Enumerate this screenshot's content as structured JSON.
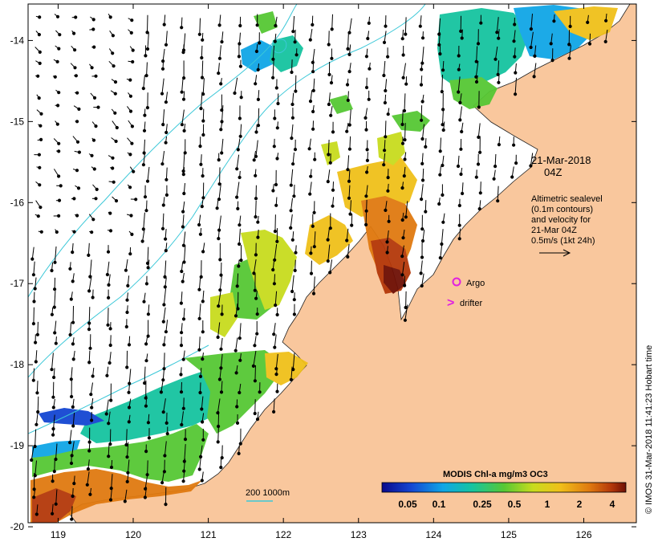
{
  "map": {
    "lon_ticks": [
      "119",
      "120",
      "121",
      "122",
      "123",
      "124",
      "125",
      "126"
    ],
    "lat_ticks": [
      "-14",
      "-15",
      "-16",
      "-17",
      "-18",
      "-19",
      "-20"
    ],
    "lon_range": [
      118.6,
      126.7
    ],
    "lat_range": [
      -19.95,
      -13.55
    ]
  },
  "annotation": {
    "date": "21-Mar-2018",
    "time": "04Z",
    "desc_lines": [
      "Altimetric sealevel",
      "(0.1m contours)",
      "and velocity for",
      "21-Mar 04Z",
      "0.5m/s (1kt 24h)"
    ]
  },
  "legend": {
    "argo_label": "Argo",
    "drifter_label": "drifter",
    "drifter_symbol": ">",
    "bathy_label": "200  1000m"
  },
  "colorbar": {
    "title": "MODIS Chl-a mg/m3 OC3",
    "ticks": [
      "0.05",
      "0.1",
      "0.25",
      "0.5",
      "1",
      "2",
      "4"
    ]
  },
  "credit": "© IMOS 31-Mar-2018 11:41:23 Hobart time",
  "colors": {
    "land": "#f9c79d",
    "bathy": "#3cc8d8",
    "argo": "#e020e0",
    "drifter": "#e020e0"
  }
}
